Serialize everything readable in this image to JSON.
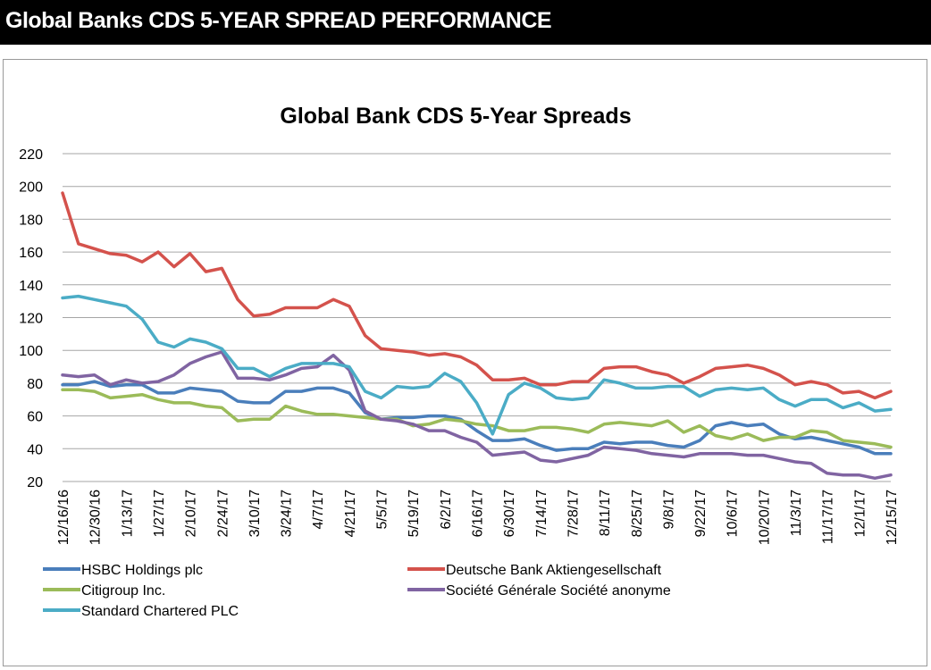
{
  "header": {
    "title": "Global Banks CDS 5-YEAR SPREAD PERFORMANCE"
  },
  "colors": {
    "header_bg": "#000000",
    "header_text": "#ffffff",
    "grid": "#a6a6a6",
    "hsbc": "#4a7ebb",
    "deutsche": "#d4524c",
    "citi": "#9bbb59",
    "socgen": "#8064a2",
    "stanchart": "#4bacc6"
  },
  "chart_data": {
    "type": "line",
    "title": "Global Bank CDS 5-Year Spreads",
    "xlabel": "",
    "ylabel": "",
    "ylim": [
      20,
      220
    ],
    "yticks": [
      20,
      40,
      60,
      80,
      100,
      120,
      140,
      160,
      180,
      200,
      220
    ],
    "grid": true,
    "legend_position": "bottom",
    "categories": [
      "12/16/16",
      "12/30/16",
      "1/13/17",
      "1/27/17",
      "2/10/17",
      "2/24/17",
      "3/10/17",
      "3/24/17",
      "4/7/17",
      "4/21/17",
      "5/5/17",
      "5/19/17",
      "6/2/17",
      "6/16/17",
      "6/30/17",
      "7/14/17",
      "7/28/17",
      "8/11/17",
      "8/25/17",
      "9/8/17",
      "9/22/17",
      "10/6/17",
      "10/20/17",
      "11/3/17",
      "11/17/17",
      "12/1/17",
      "12/15/17"
    ],
    "x": [
      "12/16/16",
      "12/23/16",
      "12/30/16",
      "1/6/17",
      "1/13/17",
      "1/20/17",
      "1/27/17",
      "2/3/17",
      "2/10/17",
      "2/17/17",
      "2/24/17",
      "3/3/17",
      "3/10/17",
      "3/17/17",
      "3/24/17",
      "3/31/17",
      "4/7/17",
      "4/14/17",
      "4/21/17",
      "4/28/17",
      "5/5/17",
      "5/12/17",
      "5/19/17",
      "5/26/17",
      "6/2/17",
      "6/9/17",
      "6/16/17",
      "6/23/17",
      "6/30/17",
      "7/7/17",
      "7/14/17",
      "7/21/17",
      "7/28/17",
      "8/4/17",
      "8/11/17",
      "8/18/17",
      "8/25/17",
      "9/1/17",
      "9/8/17",
      "9/15/17",
      "9/22/17",
      "9/29/17",
      "10/6/17",
      "10/13/17",
      "10/20/17",
      "10/27/17",
      "11/3/17",
      "11/10/17",
      "11/17/17",
      "11/24/17",
      "12/1/17",
      "12/8/17",
      "12/15/17"
    ],
    "series": [
      {
        "name": "HSBC Holdings plc",
        "color": "#4a7ebb",
        "values": [
          79,
          79,
          81,
          78,
          79,
          79,
          74,
          74,
          77,
          76,
          75,
          69,
          68,
          68,
          75,
          75,
          77,
          77,
          74,
          62,
          58,
          59,
          59,
          60,
          60,
          58,
          51,
          45,
          45,
          46,
          42,
          39,
          40,
          40,
          44,
          43,
          44,
          44,
          42,
          41,
          45,
          54,
          56,
          54,
          55,
          49,
          46,
          47,
          45,
          43,
          41,
          37,
          37
        ]
      },
      {
        "name": "Deutsche Bank Aktiengesellschaft",
        "color": "#d4524c",
        "values": [
          196,
          165,
          162,
          159,
          158,
          154,
          160,
          151,
          159,
          148,
          150,
          131,
          121,
          122,
          126,
          126,
          126,
          131,
          127,
          109,
          101,
          100,
          99,
          97,
          98,
          96,
          91,
          82,
          82,
          83,
          79,
          79,
          81,
          81,
          89,
          90,
          90,
          87,
          85,
          80,
          84,
          89,
          90,
          91,
          89,
          85,
          79,
          81,
          79,
          74,
          75,
          71,
          75
        ]
      },
      {
        "name": "Citigroup Inc.",
        "color": "#9bbb59",
        "values": [
          76,
          76,
          75,
          71,
          72,
          73,
          70,
          68,
          68,
          66,
          65,
          57,
          58,
          58,
          66,
          63,
          61,
          61,
          60,
          59,
          58,
          58,
          54,
          55,
          58,
          57,
          55,
          54,
          51,
          51,
          53,
          53,
          52,
          50,
          55,
          56,
          55,
          54,
          57,
          50,
          54,
          48,
          46,
          49,
          45,
          47,
          47,
          51,
          50,
          45,
          44,
          43,
          41
        ]
      },
      {
        "name": "Société Générale Société anonyme",
        "color": "#8064a2",
        "values": [
          85,
          84,
          85,
          79,
          82,
          80,
          81,
          85,
          92,
          96,
          99,
          83,
          83,
          82,
          85,
          89,
          90,
          97,
          88,
          63,
          58,
          57,
          55,
          51,
          51,
          47,
          44,
          36,
          37,
          38,
          33,
          32,
          34,
          36,
          41,
          40,
          39,
          37,
          36,
          35,
          37,
          37,
          37,
          36,
          36,
          34,
          32,
          31,
          25,
          24,
          24,
          22,
          24
        ]
      },
      {
        "name": "Standard Chartered PLC",
        "color": "#4bacc6",
        "values": [
          132,
          133,
          131,
          129,
          127,
          119,
          105,
          102,
          107,
          105,
          101,
          89,
          89,
          84,
          89,
          92,
          92,
          92,
          90,
          75,
          71,
          78,
          77,
          78,
          86,
          81,
          68,
          49,
          73,
          80,
          77,
          71,
          70,
          71,
          82,
          80,
          77,
          77,
          78,
          78,
          72,
          76,
          77,
          76,
          77,
          70,
          66,
          70,
          70,
          65,
          68,
          63,
          64
        ]
      }
    ]
  }
}
